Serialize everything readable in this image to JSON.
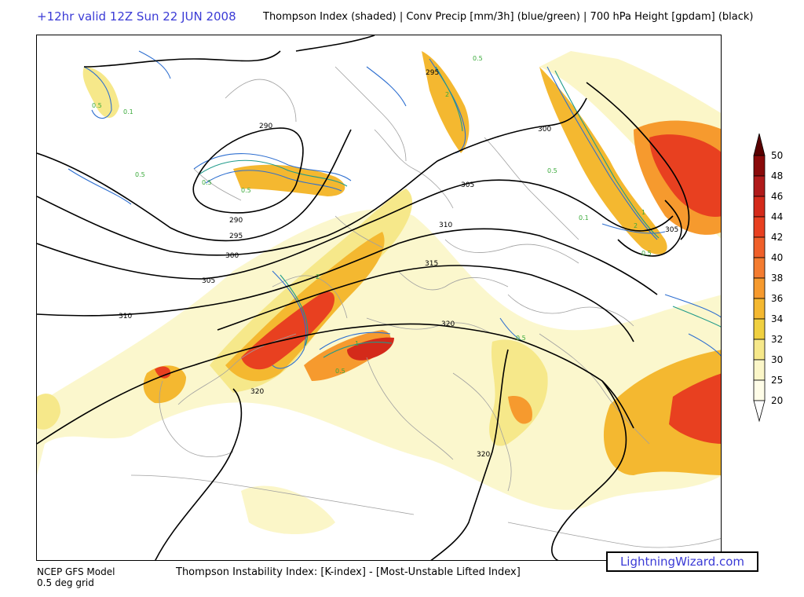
{
  "header": {
    "valid_time": "+12hr valid 12Z Sun 22 JUN 2008",
    "title": "Thompson Index (shaded) | Conv Precip [mm/3h] (blue/green) | 700 hPa Height [gpdam] (black)"
  },
  "footer": {
    "model_line1": "NCEP GFS Model",
    "model_line2": "0.5 deg grid",
    "description": "Thompson Instability Index: [K-index] - [Most-Unstable Lifted Index]",
    "brand": "LightningWizard.com"
  },
  "colorbar": {
    "labels": [
      "50",
      "48",
      "46",
      "44",
      "42",
      "40",
      "38",
      "36",
      "34",
      "32",
      "30",
      "25",
      "20"
    ],
    "colors": [
      "#5a0000",
      "#8a0a0a",
      "#b01a1a",
      "#d42a1a",
      "#e84020",
      "#f0602a",
      "#f47c30",
      "#f69a2e",
      "#f4b830",
      "#f0d040",
      "#f6e88a",
      "#fbf6c8",
      "#fffde8"
    ]
  },
  "map": {
    "height_contour_labels": [
      "295",
      "290",
      "290",
      "295",
      "300",
      "300",
      "305",
      "305",
      "310",
      "310",
      "315",
      "305",
      "320",
      "320",
      "320"
    ],
    "precip_labels": [
      "0.5",
      "0.1",
      "0.5",
      "0.5",
      "0.5",
      "2",
      "0.5",
      "1",
      "2",
      "0.5",
      "0.5",
      "2",
      "1",
      "0.1",
      "0.5",
      "0.5"
    ]
  }
}
